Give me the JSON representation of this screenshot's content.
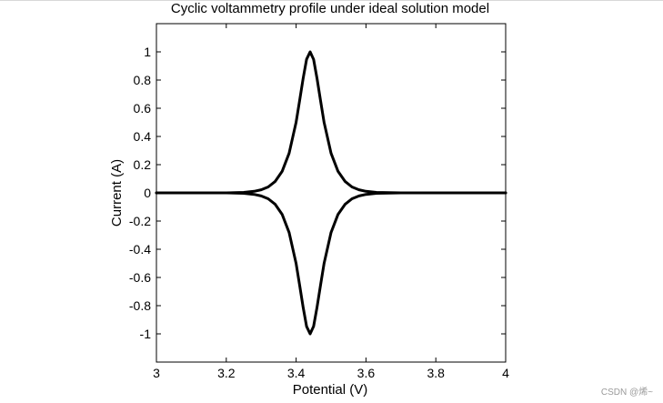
{
  "chart_data": {
    "type": "line",
    "title": "Cyclic voltammetry profile under ideal solution model",
    "xlabel": "Potential (V)",
    "ylabel": "Current (A)",
    "xlim": [
      3,
      4
    ],
    "ylim": [
      -1.2,
      1.2
    ],
    "xticks": [
      3,
      3.2,
      3.4,
      3.6,
      3.8,
      4
    ],
    "xtick_labels": [
      "3",
      "3.2",
      "3.4",
      "3.6",
      "3.8",
      "4"
    ],
    "yticks": [
      1,
      0.8,
      0.6,
      0.4,
      0.2,
      0,
      -0.2,
      -0.4,
      -0.6,
      -0.8,
      -1
    ],
    "ytick_labels": [
      "1",
      "0.8",
      "0.6",
      "0.4",
      "0.2",
      "0",
      "-0.2",
      "-0.4",
      "-0.6",
      "-0.8",
      "-1"
    ],
    "grid": false,
    "line_color": "#000000",
    "series": [
      {
        "x": [
          3.0,
          3.1,
          3.2,
          3.25,
          3.28,
          3.3,
          3.32,
          3.34,
          3.36,
          3.38,
          3.4,
          3.41,
          3.42,
          3.43,
          3.44,
          3.45,
          3.46,
          3.47,
          3.48,
          3.5,
          3.52,
          3.54,
          3.56,
          3.58,
          3.6,
          3.63,
          3.7,
          3.8,
          3.9,
          4.0
        ],
        "y": [
          0.0,
          0.0,
          0.0,
          0.003,
          0.011,
          0.022,
          0.042,
          0.081,
          0.152,
          0.281,
          0.501,
          0.652,
          0.811,
          0.947,
          1.0,
          0.947,
          0.811,
          0.652,
          0.501,
          0.281,
          0.152,
          0.081,
          0.042,
          0.022,
          0.011,
          0.003,
          0.0,
          0.0,
          0.0,
          0.0
        ]
      },
      {
        "x": [
          4.0,
          3.9,
          3.8,
          3.7,
          3.63,
          3.6,
          3.58,
          3.56,
          3.54,
          3.52,
          3.5,
          3.48,
          3.47,
          3.46,
          3.45,
          3.44,
          3.43,
          3.42,
          3.41,
          3.4,
          3.38,
          3.36,
          3.34,
          3.32,
          3.3,
          3.28,
          3.25,
          3.2,
          3.1,
          3.0
        ],
        "y": [
          0.0,
          0.0,
          0.0,
          0.0,
          -0.003,
          -0.011,
          -0.022,
          -0.042,
          -0.081,
          -0.152,
          -0.281,
          -0.501,
          -0.652,
          -0.811,
          -0.947,
          -1.0,
          -0.947,
          -0.811,
          -0.652,
          -0.501,
          -0.281,
          -0.152,
          -0.081,
          -0.042,
          -0.022,
          -0.011,
          -0.003,
          0.0,
          0.0,
          0.0
        ]
      }
    ]
  },
  "watermark": "CSDN @烯~"
}
